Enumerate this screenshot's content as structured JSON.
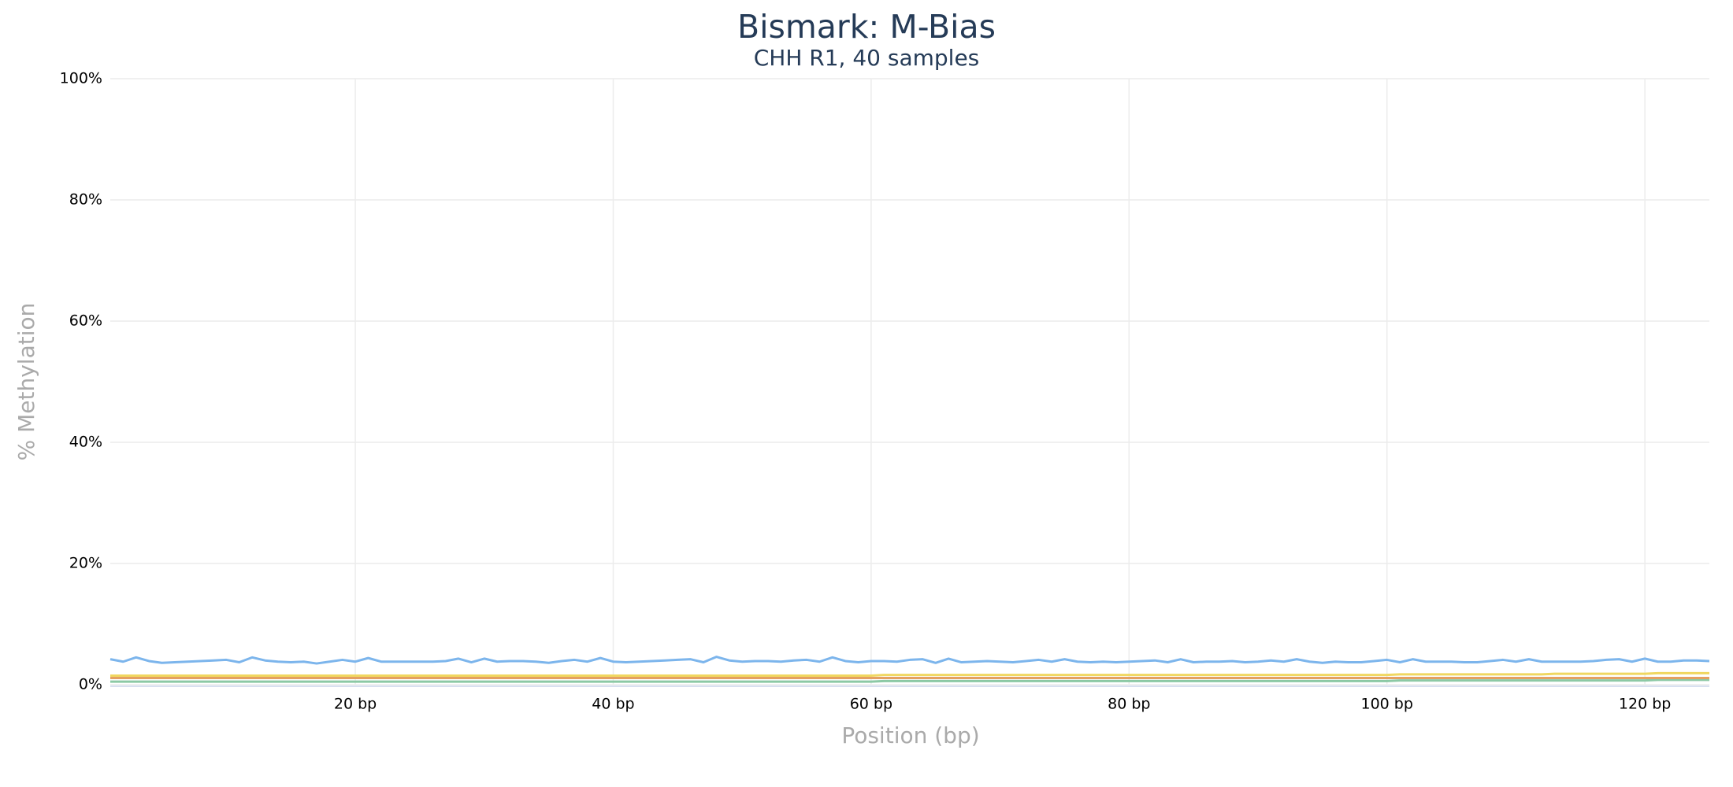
{
  "chart_data": {
    "type": "line",
    "title": "Bismark: M-Bias",
    "subtitle": "CHH R1, 40 samples",
    "x_label": "Position (bp)",
    "y_label": "% Methylation",
    "x": [
      1,
      2,
      3,
      4,
      5,
      6,
      7,
      8,
      9,
      10,
      11,
      12,
      13,
      14,
      15,
      16,
      17,
      18,
      19,
      20,
      21,
      22,
      23,
      24,
      25,
      26,
      27,
      28,
      29,
      30,
      31,
      32,
      33,
      34,
      35,
      36,
      37,
      38,
      39,
      40,
      41,
      42,
      43,
      44,
      45,
      46,
      47,
      48,
      49,
      50,
      51,
      52,
      53,
      54,
      55,
      56,
      57,
      58,
      59,
      60,
      61,
      62,
      63,
      64,
      65,
      66,
      67,
      68,
      69,
      70,
      71,
      72,
      73,
      74,
      75,
      76,
      77,
      78,
      79,
      80,
      81,
      82,
      83,
      84,
      85,
      86,
      87,
      88,
      89,
      90,
      91,
      92,
      93,
      94,
      95,
      96,
      97,
      98,
      99,
      100,
      101,
      102,
      103,
      104,
      105,
      106,
      107,
      108,
      109,
      110,
      111,
      112,
      113,
      114,
      115,
      116,
      117,
      118,
      119,
      120,
      121,
      122,
      123,
      124,
      125
    ],
    "series": [
      {
        "color": "#7cb5ec",
        "values": [
          4.2,
          3.8,
          4.5,
          3.9,
          3.6,
          3.7,
          3.8,
          3.9,
          4.0,
          4.1,
          3.7,
          4.5,
          4.0,
          3.8,
          3.7,
          3.8,
          3.5,
          3.8,
          4.1,
          3.8,
          4.4,
          3.8,
          3.8,
          3.8,
          3.8,
          3.8,
          3.9,
          4.3,
          3.7,
          4.3,
          3.8,
          3.9,
          3.9,
          3.8,
          3.6,
          3.9,
          4.1,
          3.8,
          4.4,
          3.8,
          3.7,
          3.8,
          3.9,
          4.0,
          4.1,
          4.2,
          3.7,
          4.6,
          4.0,
          3.8,
          3.9,
          3.9,
          3.8,
          4.0,
          4.1,
          3.8,
          4.5,
          3.9,
          3.7,
          3.9,
          3.9,
          3.8,
          4.1,
          4.2,
          3.6,
          4.3,
          3.7,
          3.8,
          3.9,
          3.8,
          3.7,
          3.9,
          4.1,
          3.8,
          4.2,
          3.8,
          3.7,
          3.8,
          3.7,
          3.8,
          3.9,
          4.0,
          3.7,
          4.2,
          3.7,
          3.8,
          3.8,
          3.9,
          3.7,
          3.8,
          4.0,
          3.8,
          4.2,
          3.8,
          3.6,
          3.8,
          3.7,
          3.7,
          3.9,
          4.1,
          3.7,
          4.2,
          3.8,
          3.8,
          3.8,
          3.7,
          3.7,
          3.9,
          4.1,
          3.8,
          4.2,
          3.8,
          3.8,
          3.8,
          3.8,
          3.9,
          4.1,
          4.2,
          3.8,
          4.3,
          3.8,
          3.8,
          4.0,
          4.0,
          3.9
        ]
      },
      {
        "color": "#f0d760",
        "values": [
          1.5,
          1.5,
          1.5,
          1.5,
          1.5,
          1.5,
          1.5,
          1.5,
          1.5,
          1.5,
          1.5,
          1.5,
          1.5,
          1.5,
          1.5,
          1.5,
          1.5,
          1.5,
          1.5,
          1.5,
          1.5,
          1.5,
          1.5,
          1.5,
          1.5,
          1.5,
          1.5,
          1.5,
          1.5,
          1.5,
          1.5,
          1.5,
          1.5,
          1.5,
          1.5,
          1.5,
          1.5,
          1.5,
          1.5,
          1.5,
          1.5,
          1.5,
          1.5,
          1.5,
          1.5,
          1.5,
          1.5,
          1.5,
          1.5,
          1.5,
          1.5,
          1.5,
          1.5,
          1.5,
          1.5,
          1.5,
          1.5,
          1.5,
          1.5,
          1.5,
          1.6,
          1.6,
          1.6,
          1.6,
          1.6,
          1.6,
          1.6,
          1.6,
          1.6,
          1.6,
          1.6,
          1.6,
          1.6,
          1.6,
          1.6,
          1.6,
          1.6,
          1.6,
          1.6,
          1.6,
          1.6,
          1.6,
          1.6,
          1.6,
          1.6,
          1.6,
          1.6,
          1.6,
          1.6,
          1.6,
          1.6,
          1.6,
          1.6,
          1.6,
          1.6,
          1.6,
          1.6,
          1.6,
          1.6,
          1.6,
          1.7,
          1.7,
          1.7,
          1.7,
          1.7,
          1.7,
          1.7,
          1.7,
          1.7,
          1.7,
          1.7,
          1.7,
          1.8,
          1.8,
          1.8,
          1.8,
          1.8,
          1.8,
          1.8,
          1.8,
          1.9,
          1.9,
          1.9,
          1.9,
          1.9
        ]
      },
      {
        "color": "#e4a061",
        "values": [
          1.1,
          1.1,
          1.1,
          1.1,
          1.1,
          1.1,
          1.1,
          1.1,
          1.1,
          1.1,
          1.1,
          1.1,
          1.1,
          1.1,
          1.1,
          1.1,
          1.1,
          1.1,
          1.1,
          1.1,
          1.1,
          1.1,
          1.1,
          1.1,
          1.1,
          1.1,
          1.1,
          1.1,
          1.1,
          1.1,
          1.1,
          1.1,
          1.1,
          1.1,
          1.1,
          1.1,
          1.1,
          1.1,
          1.1,
          1.1,
          1.1,
          1.1,
          1.1,
          1.1,
          1.1,
          1.1,
          1.1,
          1.1,
          1.1,
          1.1,
          1.1,
          1.1,
          1.1,
          1.1,
          1.1,
          1.1,
          1.1,
          1.1,
          1.1,
          1.1,
          1.1,
          1.1,
          1.1,
          1.1,
          1.1,
          1.1,
          1.1,
          1.1,
          1.1,
          1.1,
          1.1,
          1.1,
          1.1,
          1.1,
          1.1,
          1.1,
          1.1,
          1.1,
          1.1,
          1.1,
          1.1,
          1.1,
          1.1,
          1.1,
          1.1,
          1.1,
          1.1,
          1.1,
          1.1,
          1.1,
          1.1,
          1.1,
          1.1,
          1.1,
          1.1,
          1.1,
          1.1,
          1.1,
          1.1,
          1.1,
          1.1,
          1.1,
          1.1,
          1.1,
          1.1,
          1.1,
          1.1,
          1.1,
          1.1,
          1.1,
          1.1,
          1.1,
          1.1,
          1.1,
          1.1,
          1.1,
          1.1,
          1.1,
          1.1,
          1.1,
          1.1,
          1.1,
          1.1,
          1.1,
          1.1
        ]
      },
      {
        "color": "#8cc9a5",
        "values": [
          0.5,
          0.5,
          0.5,
          0.5,
          0.5,
          0.5,
          0.5,
          0.5,
          0.5,
          0.5,
          0.5,
          0.5,
          0.5,
          0.5,
          0.5,
          0.5,
          0.5,
          0.5,
          0.5,
          0.5,
          0.5,
          0.5,
          0.5,
          0.5,
          0.5,
          0.5,
          0.5,
          0.5,
          0.5,
          0.5,
          0.5,
          0.5,
          0.5,
          0.5,
          0.5,
          0.5,
          0.5,
          0.5,
          0.5,
          0.5,
          0.5,
          0.5,
          0.5,
          0.5,
          0.5,
          0.5,
          0.5,
          0.5,
          0.5,
          0.5,
          0.5,
          0.5,
          0.5,
          0.5,
          0.5,
          0.5,
          0.5,
          0.5,
          0.5,
          0.5,
          0.6,
          0.6,
          0.6,
          0.6,
          0.6,
          0.6,
          0.6,
          0.6,
          0.6,
          0.6,
          0.6,
          0.6,
          0.6,
          0.6,
          0.6,
          0.6,
          0.6,
          0.6,
          0.6,
          0.6,
          0.6,
          0.6,
          0.6,
          0.6,
          0.6,
          0.6,
          0.6,
          0.6,
          0.6,
          0.6,
          0.6,
          0.6,
          0.6,
          0.6,
          0.6,
          0.6,
          0.6,
          0.6,
          0.6,
          0.6,
          0.7,
          0.7,
          0.7,
          0.7,
          0.7,
          0.7,
          0.7,
          0.7,
          0.7,
          0.7,
          0.7,
          0.7,
          0.7,
          0.7,
          0.7,
          0.7,
          0.7,
          0.7,
          0.7,
          0.7,
          0.8,
          0.8,
          0.8,
          0.8,
          0.8
        ]
      }
    ],
    "xlim": [
      1,
      125
    ],
    "ylim": [
      0,
      100
    ],
    "xticks": [
      {
        "value": 20,
        "label": "20 bp"
      },
      {
        "value": 40,
        "label": "40 bp"
      },
      {
        "value": 60,
        "label": "60 bp"
      },
      {
        "value": 80,
        "label": "80 bp"
      },
      {
        "value": 100,
        "label": "100 bp"
      },
      {
        "value": 120,
        "label": "120 bp"
      }
    ],
    "yticks": [
      {
        "value": 0,
        "label": "0%"
      },
      {
        "value": 20,
        "label": "20%"
      },
      {
        "value": 40,
        "label": "40%"
      },
      {
        "value": 60,
        "label": "60%"
      },
      {
        "value": 80,
        "label": "80%"
      },
      {
        "value": 100,
        "label": "100%"
      }
    ],
    "grid": true
  }
}
